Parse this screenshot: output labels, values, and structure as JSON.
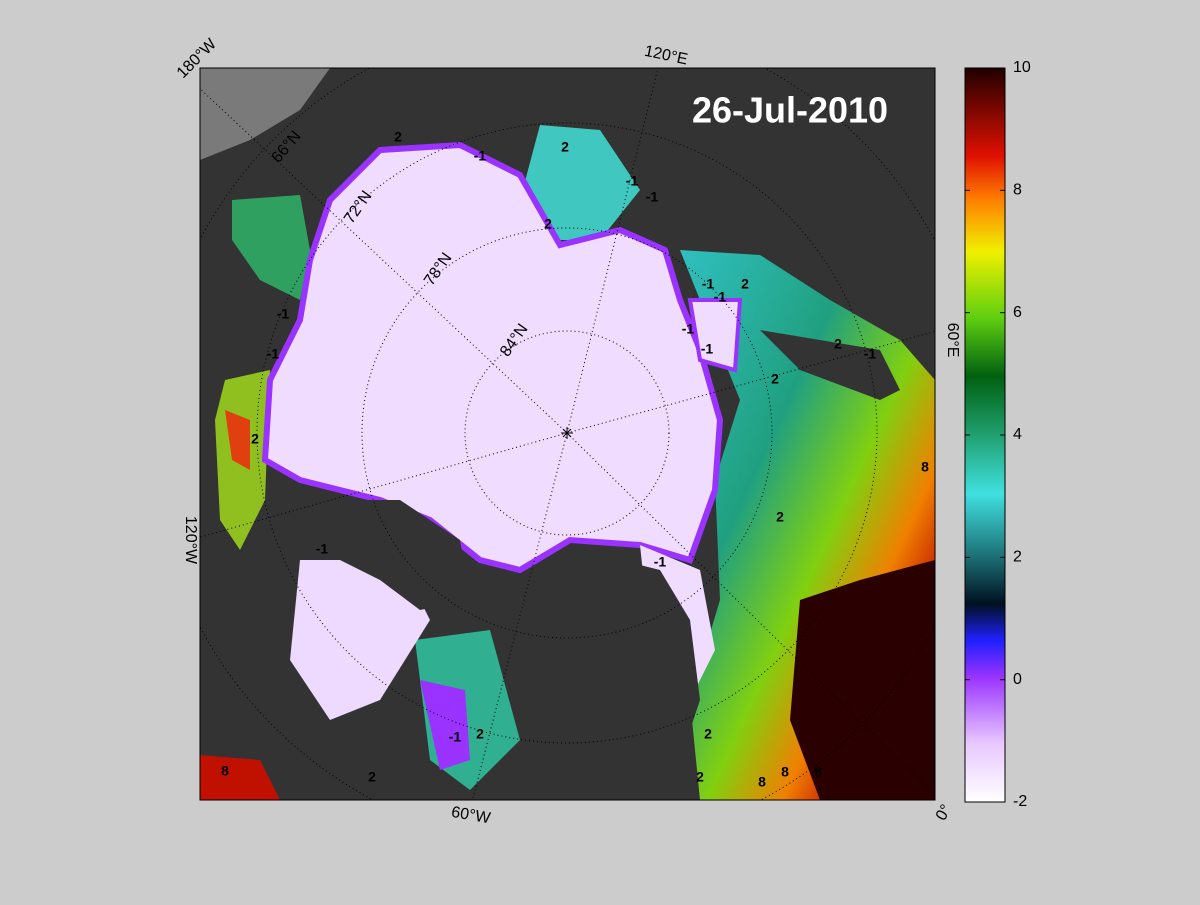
{
  "map": {
    "title": "26-Jul-2010",
    "meridian_labels": [
      "180°W",
      "120°E",
      "60°E",
      "0°",
      "60°W",
      "120°W"
    ],
    "parallel_labels": [
      "66°N",
      "72°N",
      "78°N",
      "84°N"
    ],
    "contour_labels": [
      "2",
      "-1",
      "2",
      "-1",
      "-1",
      "2",
      "-1",
      "2",
      "-1",
      "-1",
      "-1",
      "2",
      "-1",
      "2",
      "8",
      "2",
      "-1",
      "-1",
      "2",
      "-1",
      "2",
      "2",
      "8",
      "8",
      "8",
      "8",
      "2",
      "-1",
      "2",
      "-1"
    ]
  },
  "colorbar": {
    "ylim": [
      -2,
      10
    ],
    "yticks": [
      -2,
      0,
      2,
      4,
      6,
      8,
      10
    ]
  }
}
